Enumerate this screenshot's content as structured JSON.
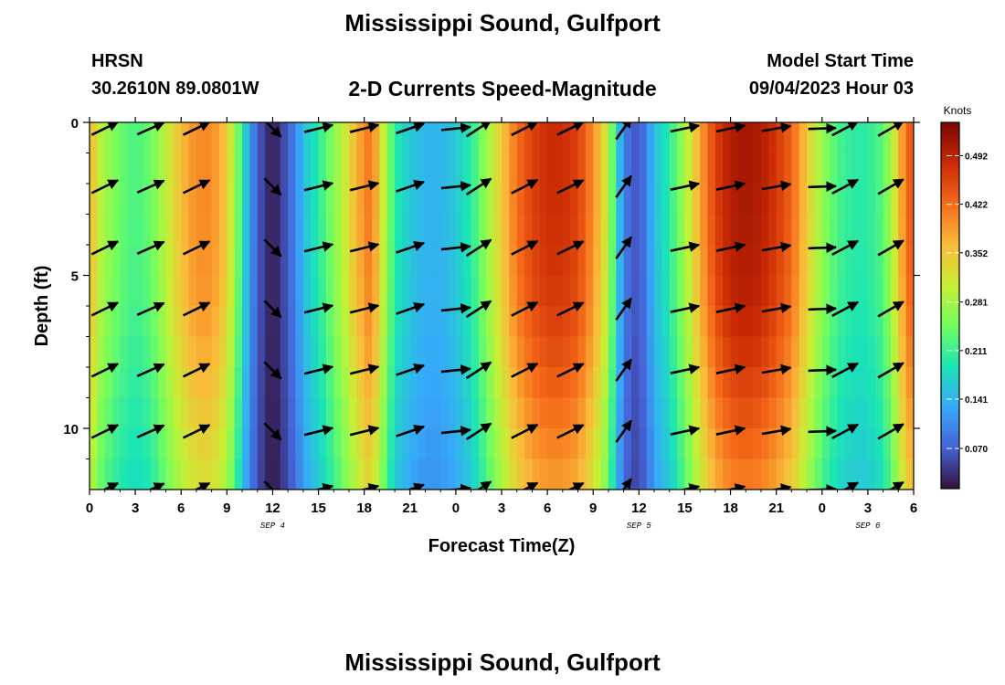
{
  "header": {
    "title": "Mississippi Sound, Gulfport",
    "station": "HRSN",
    "coordinates": "30.2610N  89.0801W",
    "subtitle": "2-D Currents Speed-Magnitude",
    "model_start_label": "Model Start Time",
    "model_start_value": "09/04/2023 Hour 03"
  },
  "footer": {
    "title": "Mississippi Sound, Gulfport"
  },
  "chart_data": {
    "type": "heatmap",
    "title": "2-D Currents Speed-Magnitude",
    "xlabel": "Forecast Time(Z)",
    "ylabel": "Depth (ft)",
    "x_range_hours": [
      0,
      54
    ],
    "ylim": [
      0,
      12
    ],
    "y_inverted": true,
    "x_ticks": [
      {
        "h": 0,
        "label": "0"
      },
      {
        "h": 3,
        "label": "3"
      },
      {
        "h": 6,
        "label": "6"
      },
      {
        "h": 9,
        "label": "9"
      },
      {
        "h": 12,
        "label": "12"
      },
      {
        "h": 15,
        "label": "15"
      },
      {
        "h": 18,
        "label": "18"
      },
      {
        "h": 21,
        "label": "21"
      },
      {
        "h": 24,
        "label": "0"
      },
      {
        "h": 27,
        "label": "3"
      },
      {
        "h": 30,
        "label": "6"
      },
      {
        "h": 33,
        "label": "9"
      },
      {
        "h": 36,
        "label": "12"
      },
      {
        "h": 39,
        "label": "15"
      },
      {
        "h": 42,
        "label": "18"
      },
      {
        "h": 45,
        "label": "21"
      },
      {
        "h": 48,
        "label": "0"
      },
      {
        "h": 51,
        "label": "3"
      },
      {
        "h": 54,
        "label": "6"
      }
    ],
    "date_labels": [
      {
        "h": 12,
        "label": "SEP 4"
      },
      {
        "h": 36,
        "label": "SEP 5"
      },
      {
        "h": 51,
        "label": "SEP 6"
      }
    ],
    "y_ticks": [
      0,
      5,
      10
    ],
    "colorbar": {
      "title": "Knots",
      "range": [
        0.012,
        0.54
      ],
      "ticks": [
        0.07,
        0.141,
        0.211,
        0.281,
        0.352,
        0.422,
        0.492
      ],
      "tick_labels": [
        "0.070",
        "0.141",
        "0.211",
        "0.281",
        "0.352",
        "0.422",
        "0.492"
      ],
      "colormap": [
        "#30123b",
        "#4662d7",
        "#36aaf9",
        "#1ae4b6",
        "#72fe5e",
        "#c8ef34",
        "#faba39",
        "#f66b19",
        "#cb2a04",
        "#7a0403"
      ]
    },
    "speed_profile": {
      "hours": [
        0,
        0.5,
        1,
        2,
        3,
        4,
        5,
        6,
        7,
        8,
        9,
        9.5,
        10,
        10.5,
        11,
        11.5,
        12,
        12.5,
        13,
        13.5,
        14,
        15,
        16,
        17,
        18,
        18.5,
        19,
        19.5,
        20,
        21,
        22,
        23,
        24,
        25,
        26,
        27,
        28,
        29,
        30,
        31,
        32,
        33,
        34,
        34.3,
        34.7,
        35,
        35.5,
        36,
        36.5,
        37,
        38,
        39,
        40,
        41,
        42,
        43,
        44,
        45,
        46,
        47,
        48,
        49,
        50,
        51,
        52,
        52.5,
        53,
        53.5,
        54
      ],
      "surface_knots": [
        0.38,
        0.31,
        0.28,
        0.24,
        0.22,
        0.24,
        0.3,
        0.36,
        0.4,
        0.4,
        0.35,
        0.28,
        0.2,
        0.12,
        0.07,
        0.04,
        0.02,
        0.04,
        0.07,
        0.1,
        0.15,
        0.2,
        0.26,
        0.33,
        0.4,
        0.42,
        0.34,
        0.27,
        0.2,
        0.16,
        0.14,
        0.14,
        0.16,
        0.2,
        0.27,
        0.35,
        0.42,
        0.46,
        0.48,
        0.48,
        0.46,
        0.4,
        0.3,
        0.23,
        0.15,
        0.1,
        0.07,
        0.06,
        0.1,
        0.15,
        0.2,
        0.28,
        0.38,
        0.46,
        0.5,
        0.51,
        0.5,
        0.47,
        0.43,
        0.35,
        0.27,
        0.22,
        0.2,
        0.2,
        0.23,
        0.28,
        0.35,
        0.42,
        0.45
      ],
      "depth_ft": [
        0,
        2,
        4,
        6,
        8,
        10,
        12
      ],
      "depth_factor": [
        1.0,
        1.0,
        0.99,
        0.97,
        0.92,
        0.86,
        0.8
      ]
    },
    "vector_rows_ft": [
      0.2,
      2.1,
      4.1,
      6.1,
      8.1,
      10.1,
      12
    ],
    "vectors": [
      {
        "h": 1,
        "dir": 64,
        "len": 1
      },
      {
        "h": 4,
        "dir": 66,
        "len": 1
      },
      {
        "h": 7,
        "dir": 64,
        "len": 1
      },
      {
        "h": 12,
        "dir": 135,
        "len": 0.8
      },
      {
        "h": 15,
        "dir": 76,
        "len": 1
      },
      {
        "h": 18,
        "dir": 76,
        "len": 1
      },
      {
        "h": 21,
        "dir": 71,
        "len": 1
      },
      {
        "h": 24,
        "dir": 84,
        "len": 1
      },
      {
        "h": 25.5,
        "dir": 57,
        "len": 1
      },
      {
        "h": 28.5,
        "dir": 63,
        "len": 1
      },
      {
        "h": 31.5,
        "dir": 64,
        "len": 1
      },
      {
        "h": 35,
        "dir": 35,
        "len": 0.9
      },
      {
        "h": 39,
        "dir": 78,
        "len": 1
      },
      {
        "h": 42,
        "dir": 78,
        "len": 1
      },
      {
        "h": 45,
        "dir": 80,
        "len": 1
      },
      {
        "h": 48,
        "dir": 88,
        "len": 0.95
      },
      {
        "h": 49.5,
        "dir": 62,
        "len": 1
      },
      {
        "h": 52.5,
        "dir": 60,
        "len": 1
      }
    ]
  }
}
